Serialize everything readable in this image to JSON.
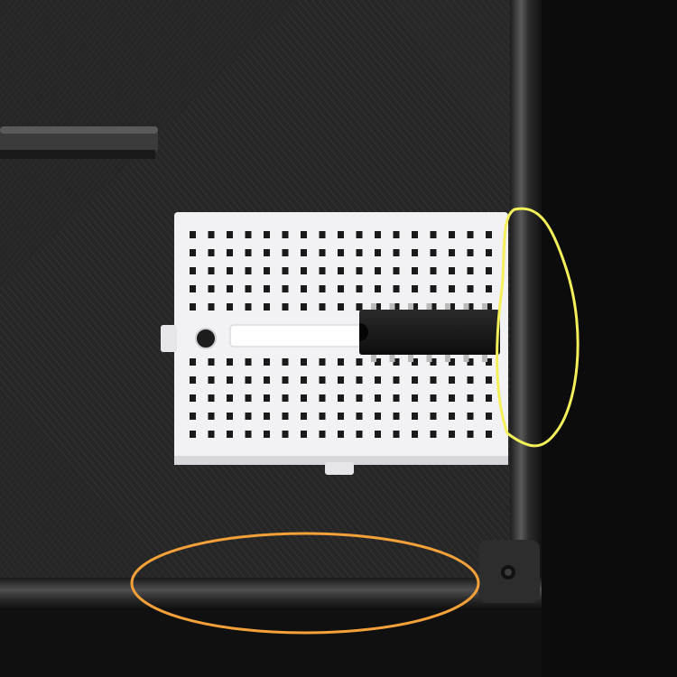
{
  "scene": {
    "subject": "white-mini-breadboard-with-dip-ic-on-3d-printed-tray",
    "colors": {
      "background_cloth": "#0b0b0b",
      "tray_plastic": "#2a2a2a",
      "tray_wall": "#3a3a3a",
      "breadboard": "#f2f2f4",
      "breadboard_hole": "#1a1a1a",
      "ic_body": "#151515",
      "ic_pin": "#b9b9b9",
      "highlight_yellow": "#f4f05a",
      "highlight_orange": "#f5a13a"
    },
    "breadboard": {
      "columns": 17,
      "rows_per_half": 5
    },
    "ic": {
      "pins_per_side": 7
    },
    "annotations": [
      {
        "name": "right-wall-highlight",
        "color": "#f4f05a",
        "shape": "ellipse"
      },
      {
        "name": "bottom-edge-highlight",
        "color": "#f5a13a",
        "shape": "ellipse"
      }
    ]
  }
}
